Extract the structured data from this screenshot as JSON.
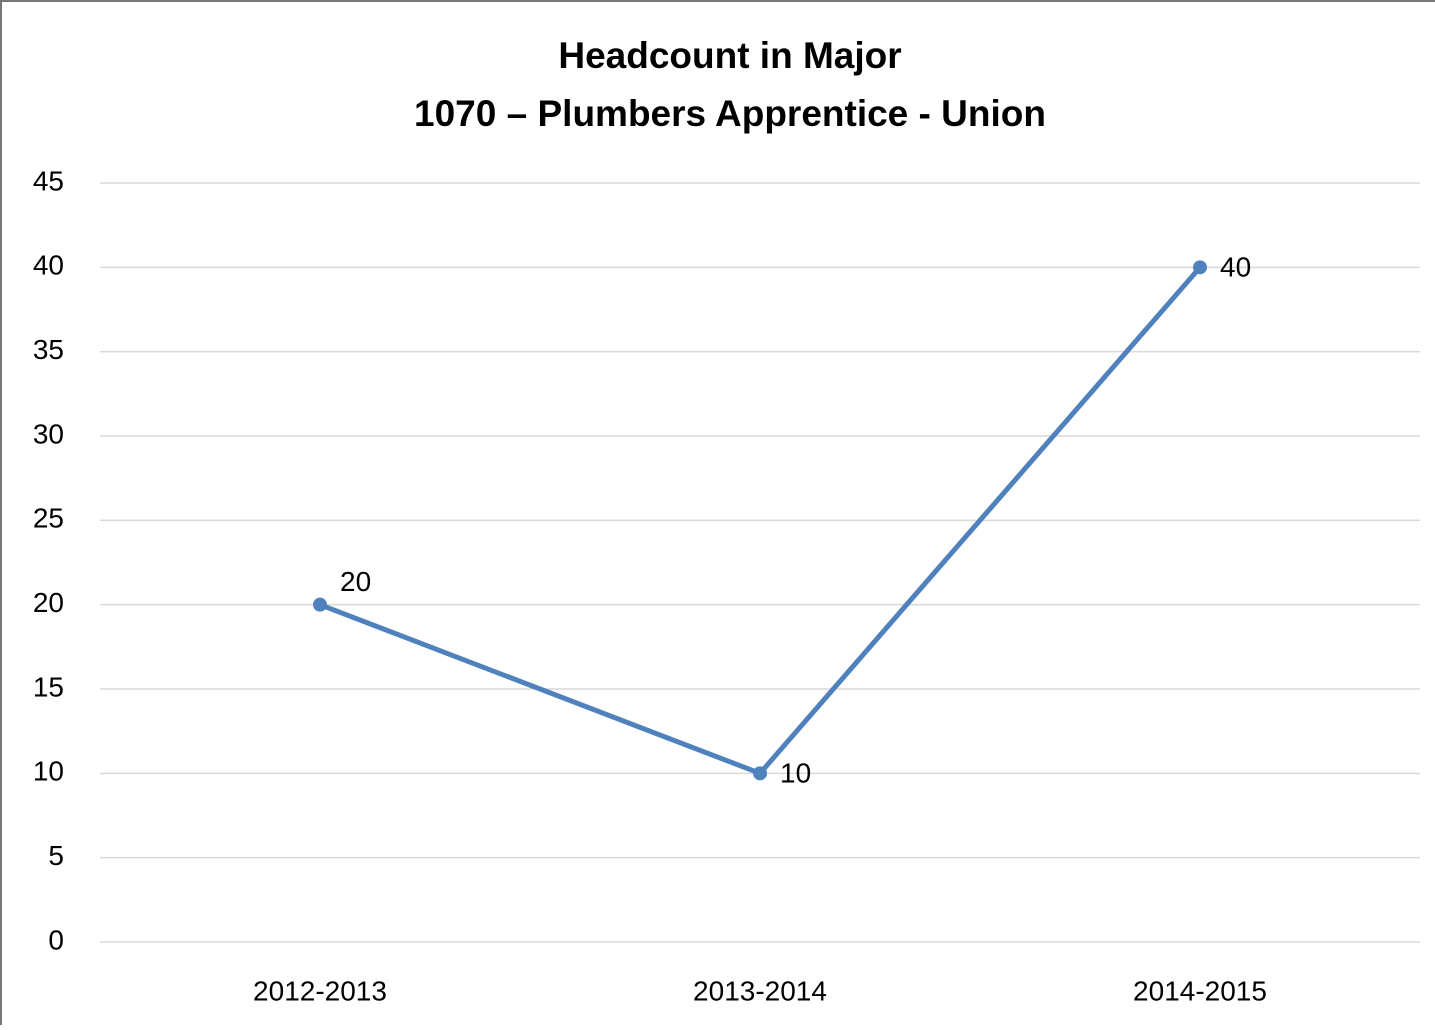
{
  "chart_data": {
    "type": "line",
    "title": [
      "Headcount in Major",
      "1070 – Plumbers Apprentice - Union"
    ],
    "categories": [
      "2012-2013",
      "2013-2014",
      "2014-2015"
    ],
    "series": [
      {
        "name": "Headcount",
        "color": "#4f81bd",
        "values": [
          20,
          10,
          40
        ]
      }
    ],
    "ylim": [
      0,
      45
    ],
    "yticks": [
      0,
      5,
      10,
      15,
      20,
      25,
      30,
      35,
      40,
      45
    ],
    "grid": true,
    "data_labels": true
  }
}
